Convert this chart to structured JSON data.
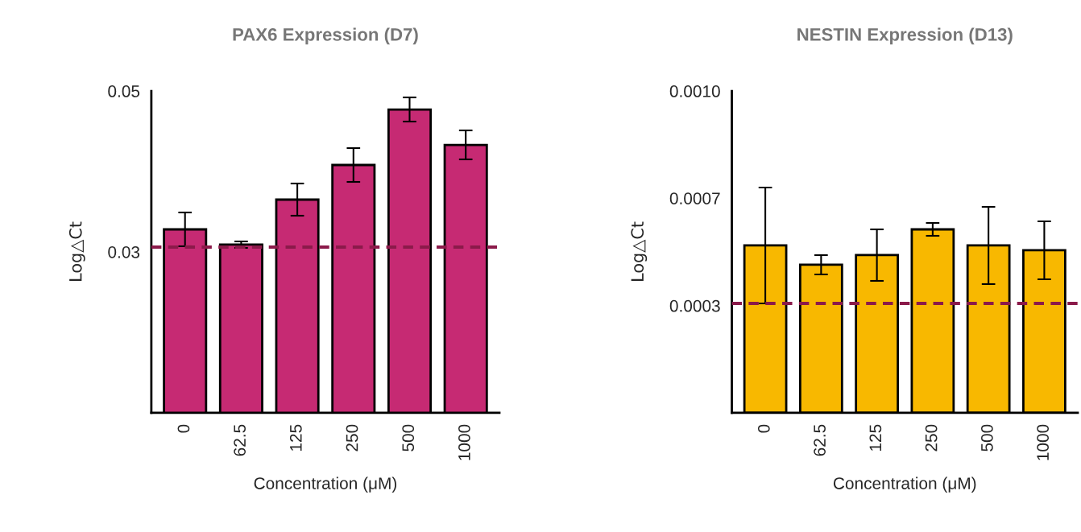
{
  "chart_data": [
    {
      "type": "bar",
      "title": "PAX6 Expression (D7)",
      "xlabel": "Concentration (μM)",
      "ylabel": "Log△Ct",
      "categories": [
        "0",
        "62.5",
        "125",
        "250",
        "500",
        "1000"
      ],
      "series": [
        {
          "color": "#c62a73",
          "values": [
            0.0328,
            0.0309,
            0.0365,
            0.0408,
            0.0477,
            0.0433
          ],
          "errors": [
            0.0021,
            0.0004,
            0.002,
            0.0021,
            0.0015,
            0.0018
          ]
        }
      ],
      "ylim": [
        0.01,
        0.05
      ],
      "yticks": [
        0.03,
        0.05
      ],
      "grid": false,
      "legend": false,
      "ref_lines": [
        {
          "axis": "y",
          "value": 0.0306,
          "color": "#8b1a4a",
          "line_style": "dashed"
        }
      ]
    },
    {
      "type": "bar",
      "title": "NESTIN Expression (D13)",
      "xlabel": "Concentration (μM)",
      "ylabel": "Log△Ct",
      "categories": [
        "0",
        "62.5",
        "125",
        "250",
        "500",
        "1000"
      ],
      "series": [
        {
          "color": "#f8b800",
          "values": [
            0.00052,
            0.00046,
            0.00049,
            0.00057,
            0.00052,
            0.000505
          ],
          "errors": [
            0.00018,
            3e-05,
            8e-05,
            2e-05,
            0.00012,
            9e-05
          ]
        }
      ],
      "ylim": [
        0,
        0.001
      ],
      "yticks": [
        {
          "value": 0.000333,
          "label": "0.0003"
        },
        {
          "value": 0.000667,
          "label": "0.0007"
        },
        {
          "value": 0.001,
          "label": "0.0010"
        }
      ],
      "grid": false,
      "legend": false,
      "ref_lines": [
        {
          "axis": "y",
          "value": 0.00034,
          "color": "#8b1a4a",
          "line_style": "dashed"
        }
      ]
    }
  ]
}
